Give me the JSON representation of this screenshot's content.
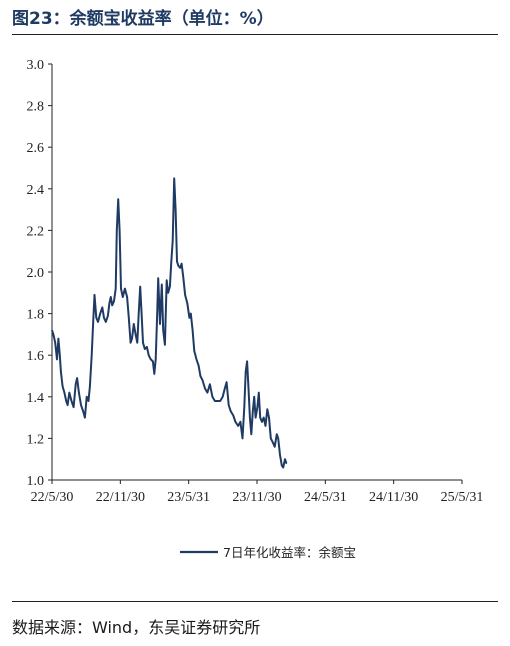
{
  "figure": {
    "title": "图23：余额宝收益率（单位：%）",
    "source": "数据来源：Wind，东吴证券研究所"
  },
  "chart_data": {
    "type": "line",
    "title": "",
    "xlabel": "",
    "ylabel": "",
    "ylim": [
      1.0,
      3.0
    ],
    "y_ticks": [
      "1.0",
      "1.2",
      "1.4",
      "1.6",
      "1.8",
      "2.0",
      "2.2",
      "2.4",
      "2.6",
      "2.8",
      "3.0"
    ],
    "x_ticks": [
      "22/5/30",
      "22/11/30",
      "23/5/31",
      "23/11/30",
      "24/5/31",
      "24/11/30",
      "25/5/31"
    ],
    "grid": false,
    "legend_position": "bottom",
    "series": [
      {
        "name": "7日年化收益率：余额宝",
        "color": "#1f3b63",
        "points": [
          [
            "2022-05-30",
            1.72
          ],
          [
            "2022-06-03",
            1.7
          ],
          [
            "2022-06-08",
            1.66
          ],
          [
            "2022-06-13",
            1.58
          ],
          [
            "2022-06-17",
            1.68
          ],
          [
            "2022-06-21",
            1.6
          ],
          [
            "2022-06-24",
            1.52
          ],
          [
            "2022-06-29",
            1.45
          ],
          [
            "2022-07-04",
            1.42
          ],
          [
            "2022-07-09",
            1.38
          ],
          [
            "2022-07-13",
            1.36
          ],
          [
            "2022-07-18",
            1.42
          ],
          [
            "2022-07-24",
            1.38
          ],
          [
            "2022-07-30",
            1.35
          ],
          [
            "2022-08-05",
            1.46
          ],
          [
            "2022-08-09",
            1.49
          ],
          [
            "2022-08-14",
            1.42
          ],
          [
            "2022-08-20",
            1.36
          ],
          [
            "2022-08-26",
            1.33
          ],
          [
            "2022-08-31",
            1.3
          ],
          [
            "2022-09-05",
            1.4
          ],
          [
            "2022-09-10",
            1.38
          ],
          [
            "2022-09-14",
            1.45
          ],
          [
            "2022-09-19",
            1.6
          ],
          [
            "2022-09-23",
            1.75
          ],
          [
            "2022-09-27",
            1.89
          ],
          [
            "2022-10-02",
            1.78
          ],
          [
            "2022-10-07",
            1.76
          ],
          [
            "2022-10-13",
            1.8
          ],
          [
            "2022-10-19",
            1.83
          ],
          [
            "2022-10-24",
            1.78
          ],
          [
            "2022-10-29",
            1.76
          ],
          [
            "2022-11-04",
            1.79
          ],
          [
            "2022-11-08",
            1.85
          ],
          [
            "2022-11-12",
            1.88
          ],
          [
            "2022-11-16",
            1.84
          ],
          [
            "2022-11-21",
            1.86
          ],
          [
            "2022-11-26",
            1.92
          ],
          [
            "2022-11-29",
            2.2
          ],
          [
            "2022-12-03",
            2.35
          ],
          [
            "2022-12-07",
            2.2
          ],
          [
            "2022-12-11",
            1.92
          ],
          [
            "2022-12-16",
            1.88
          ],
          [
            "2022-12-22",
            1.92
          ],
          [
            "2022-12-28",
            1.88
          ],
          [
            "2023-01-02",
            1.78
          ],
          [
            "2023-01-07",
            1.66
          ],
          [
            "2023-01-11",
            1.68
          ],
          [
            "2023-01-16",
            1.75
          ],
          [
            "2023-01-21",
            1.7
          ],
          [
            "2023-01-26",
            1.66
          ],
          [
            "2023-01-30",
            1.8
          ],
          [
            "2023-02-03",
            1.93
          ],
          [
            "2023-02-07",
            1.8
          ],
          [
            "2023-02-11",
            1.66
          ],
          [
            "2023-02-16",
            1.63
          ],
          [
            "2023-02-22",
            1.64
          ],
          [
            "2023-02-27",
            1.6
          ],
          [
            "2023-03-05",
            1.58
          ],
          [
            "2023-03-11",
            1.57
          ],
          [
            "2023-03-15",
            1.51
          ],
          [
            "2023-03-19",
            1.58
          ],
          [
            "2023-03-23",
            1.8
          ],
          [
            "2023-03-26",
            1.97
          ],
          [
            "2023-03-31",
            1.75
          ],
          [
            "2023-04-05",
            1.94
          ],
          [
            "2023-04-09",
            1.72
          ],
          [
            "2023-04-14",
            1.65
          ],
          [
            "2023-04-19",
            1.96
          ],
          [
            "2023-04-23",
            1.9
          ],
          [
            "2023-04-28",
            1.93
          ],
          [
            "2023-05-02",
            2.05
          ],
          [
            "2023-05-06",
            2.15
          ],
          [
            "2023-05-10",
            2.45
          ],
          [
            "2023-05-14",
            2.3
          ],
          [
            "2023-05-18",
            2.05
          ],
          [
            "2023-05-22",
            2.03
          ],
          [
            "2023-05-27",
            2.02
          ],
          [
            "2023-05-31",
            2.04
          ],
          [
            "2023-06-05",
            1.97
          ],
          [
            "2023-06-10",
            1.89
          ],
          [
            "2023-06-16",
            1.85
          ],
          [
            "2023-06-22",
            1.78
          ],
          [
            "2023-06-26",
            1.8
          ],
          [
            "2023-07-01",
            1.72
          ],
          [
            "2023-07-06",
            1.62
          ],
          [
            "2023-07-12",
            1.58
          ],
          [
            "2023-07-18",
            1.55
          ],
          [
            "2023-07-23",
            1.5
          ],
          [
            "2023-07-29",
            1.48
          ],
          [
            "2023-08-05",
            1.44
          ],
          [
            "2023-08-12",
            1.42
          ],
          [
            "2023-08-19",
            1.46
          ],
          [
            "2023-08-26",
            1.4
          ],
          [
            "2023-09-02",
            1.38
          ],
          [
            "2023-09-09",
            1.38
          ],
          [
            "2023-09-17",
            1.38
          ],
          [
            "2023-09-24",
            1.4
          ],
          [
            "2023-09-30",
            1.44
          ],
          [
            "2023-10-05",
            1.47
          ],
          [
            "2023-10-11",
            1.36
          ],
          [
            "2023-10-17",
            1.33
          ],
          [
            "2023-10-24",
            1.31
          ],
          [
            "2023-10-30",
            1.28
          ],
          [
            "2023-11-07",
            1.26
          ],
          [
            "2023-11-13",
            1.28
          ],
          [
            "2023-11-19",
            1.2
          ],
          [
            "2023-11-24",
            1.35
          ],
          [
            "2023-11-28",
            1.52
          ],
          [
            "2023-12-02",
            1.57
          ],
          [
            "2023-12-06",
            1.44
          ],
          [
            "2023-12-10",
            1.3
          ],
          [
            "2023-12-14",
            1.22
          ],
          [
            "2023-12-18",
            1.33
          ],
          [
            "2023-12-22",
            1.4
          ],
          [
            "2023-12-26",
            1.3
          ],
          [
            "2023-12-31",
            1.35
          ],
          [
            "2024-01-04",
            1.42
          ],
          [
            "2024-01-08",
            1.3
          ],
          [
            "2024-01-13",
            1.28
          ],
          [
            "2024-01-18",
            1.3
          ],
          [
            "2024-01-23",
            1.26
          ],
          [
            "2024-01-28",
            1.34
          ],
          [
            "2024-02-02",
            1.3
          ],
          [
            "2024-02-07",
            1.2
          ],
          [
            "2024-02-13",
            1.18
          ],
          [
            "2024-02-18",
            1.16
          ],
          [
            "2024-02-24",
            1.22
          ],
          [
            "2024-02-28",
            1.2
          ],
          [
            "2024-03-04",
            1.12
          ],
          [
            "2024-03-09",
            1.07
          ],
          [
            "2024-03-13",
            1.06
          ],
          [
            "2024-03-18",
            1.1
          ],
          [
            "2024-03-22",
            1.08
          ]
        ]
      }
    ]
  }
}
